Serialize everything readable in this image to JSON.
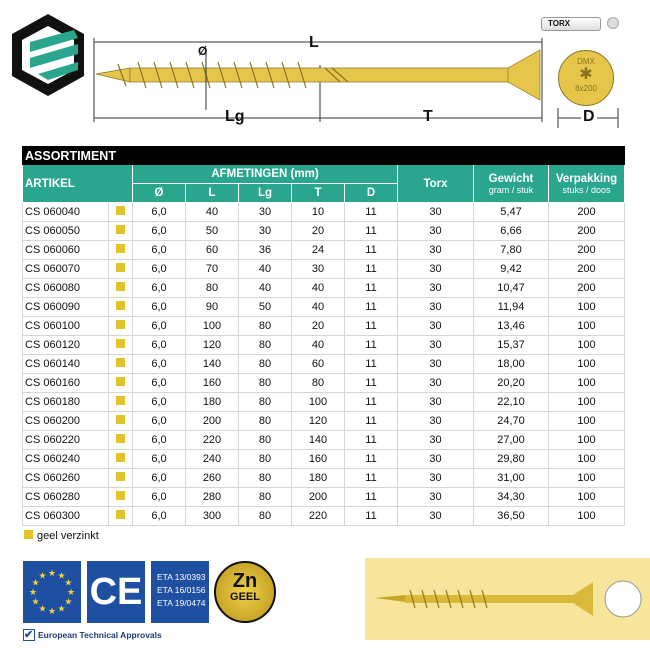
{
  "drawing": {
    "labels": {
      "L": "L",
      "Lg": "Lg",
      "T": "T",
      "D": "D",
      "diameter": "Ø"
    },
    "bit_label": "TORX",
    "head_text_top": "DMX",
    "head_text_bottom": "8x200"
  },
  "table": {
    "title": "ASSORTIMENT",
    "headers": {
      "artikel": "ARTIKEL",
      "afmetingen": "AFMETINGEN (mm)",
      "dims": [
        "Ø",
        "L",
        "Lg",
        "T",
        "D"
      ],
      "torx": "Torx",
      "gewicht": "Gewicht",
      "gewicht_unit": "gram / stuk",
      "verpakking": "Verpakking",
      "verpakking_unit": "stuks / doos"
    },
    "rows": [
      [
        "CS 060040",
        "6,0",
        "40",
        "30",
        "10",
        "11",
        "30",
        "5,47",
        "200"
      ],
      [
        "CS 060050",
        "6,0",
        "50",
        "30",
        "20",
        "11",
        "30",
        "6,66",
        "200"
      ],
      [
        "CS 060060",
        "6,0",
        "60",
        "36",
        "24",
        "11",
        "30",
        "7,80",
        "200"
      ],
      [
        "CS 060070",
        "6,0",
        "70",
        "40",
        "30",
        "11",
        "30",
        "9,42",
        "200"
      ],
      [
        "CS 060080",
        "6,0",
        "80",
        "40",
        "40",
        "11",
        "30",
        "10,47",
        "200"
      ],
      [
        "CS 060090",
        "6,0",
        "90",
        "50",
        "40",
        "11",
        "30",
        "11,94",
        "100"
      ],
      [
        "CS 060100",
        "6,0",
        "100",
        "80",
        "20",
        "11",
        "30",
        "13,46",
        "100"
      ],
      [
        "CS 060120",
        "6,0",
        "120",
        "80",
        "40",
        "11",
        "30",
        "15,37",
        "100"
      ],
      [
        "CS 060140",
        "6,0",
        "140",
        "80",
        "60",
        "11",
        "30",
        "18,00",
        "100"
      ],
      [
        "CS 060160",
        "6,0",
        "160",
        "80",
        "80",
        "11",
        "30",
        "20,20",
        "100"
      ],
      [
        "CS 060180",
        "6,0",
        "180",
        "80",
        "100",
        "11",
        "30",
        "22,10",
        "100"
      ],
      [
        "CS 060200",
        "6,0",
        "200",
        "80",
        "120",
        "11",
        "30",
        "24,70",
        "100"
      ],
      [
        "CS 060220",
        "6,0",
        "220",
        "80",
        "140",
        "11",
        "30",
        "27,00",
        "100"
      ],
      [
        "CS 060240",
        "6,0",
        "240",
        "80",
        "160",
        "11",
        "30",
        "29,80",
        "100"
      ],
      [
        "CS 060260",
        "6,0",
        "260",
        "80",
        "180",
        "11",
        "30",
        "31,00",
        "100"
      ],
      [
        "CS 060280",
        "6,0",
        "280",
        "80",
        "200",
        "11",
        "30",
        "34,30",
        "100"
      ],
      [
        "CS 060300",
        "6,0",
        "300",
        "80",
        "220",
        "11",
        "30",
        "36,50",
        "100"
      ]
    ]
  },
  "legend": {
    "label": "geel verzinkt",
    "color": "#e3c22a"
  },
  "badges": {
    "ce": "CE",
    "eta": [
      "ETA 13/0393",
      "ETA 16/0156",
      "ETA 19/0474"
    ],
    "zn_top": "Zn",
    "zn_bottom": "GEEL",
    "approval": "European Technical Approvals"
  },
  "colors": {
    "teal": "#2aa58e",
    "blue": "#1f4fa0",
    "yellow": "#e3c22a"
  }
}
